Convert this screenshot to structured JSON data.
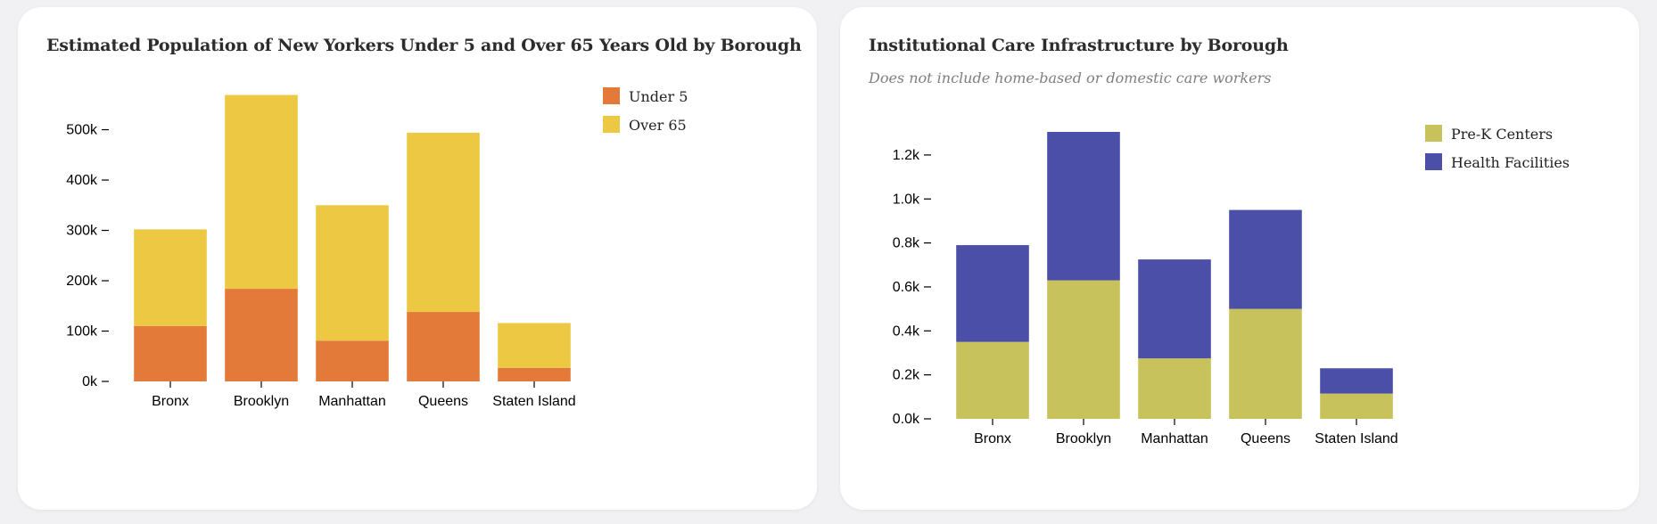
{
  "charts": [
    {
      "title": "Estimated Population of New Yorkers Under 5 and Over 65 Years Old by Borough",
      "subtitle": ""
    },
    {
      "title": "Institutional Care Infrastructure by Borough",
      "subtitle": "Does not include home-based or domestic care workers"
    }
  ],
  "chart_data": [
    {
      "type": "bar",
      "stacked": true,
      "title": "Estimated Population of New Yorkers Under 5 and Over 65 Years Old by Borough",
      "xlabel": "",
      "ylabel": "",
      "categories": [
        "Bronx",
        "Brooklyn",
        "Manhattan",
        "Queens",
        "Staten Island"
      ],
      "series": [
        {
          "name": "Under 5",
          "color": "#e47a3a",
          "values": [
            110000,
            184000,
            81000,
            138000,
            27000
          ]
        },
        {
          "name": "Over 65",
          "color": "#edc843",
          "values": [
            192000,
            385000,
            269000,
            356000,
            89000
          ]
        }
      ],
      "yticks": [
        0,
        100000,
        200000,
        300000,
        400000,
        500000
      ],
      "ytick_labels": [
        "0k",
        "100k",
        "200k",
        "300k",
        "400k",
        "500k"
      ],
      "ylim": [
        0,
        570000
      ],
      "legend": "top-right",
      "grid": false
    },
    {
      "type": "bar",
      "stacked": true,
      "title": "Institutional Care Infrastructure by Borough",
      "subtitle": "Does not include home-based or domestic care workers",
      "xlabel": "",
      "ylabel": "",
      "categories": [
        "Bronx",
        "Brooklyn",
        "Manhattan",
        "Queens",
        "Staten Island"
      ],
      "series": [
        {
          "name": "Pre-K Centers",
          "color": "#c8c25c",
          "values": [
            350,
            630,
            275,
            500,
            115
          ]
        },
        {
          "name": "Health Facilities",
          "color": "#4c4fa8",
          "values": [
            440,
            675,
            450,
            450,
            115
          ]
        }
      ],
      "yticks": [
        0,
        200,
        400,
        600,
        800,
        1000,
        1200
      ],
      "ytick_labels": [
        "0.0k",
        "0.2k",
        "0.4k",
        "0.6k",
        "0.8k",
        "1.0k",
        "1.2k"
      ],
      "ylim": [
        0,
        1305
      ],
      "legend": "top-right",
      "grid": false
    }
  ]
}
